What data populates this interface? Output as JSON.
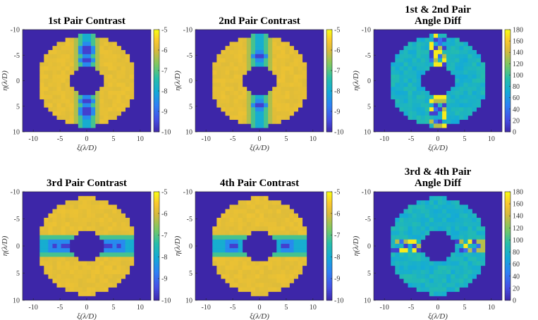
{
  "chart_data": [
    {
      "type": "heatmap",
      "title_lines": [
        "1st Pair Contrast"
      ],
      "xlabel": "ξ(λ/D)",
      "ylabel": "η(λ/D)",
      "xlim": [
        -12,
        12
      ],
      "ylim": [
        -10,
        10
      ],
      "xticks": [
        "-10",
        "-5",
        "0",
        "5",
        "10"
      ],
      "yticks": [
        "-10",
        "-5",
        "0",
        "5",
        "10"
      ],
      "colorbar": {
        "min": -10,
        "max": -5,
        "ticks": [
          "-5",
          "-6",
          "-7",
          "-8",
          "-9",
          "-10"
        ]
      },
      "field": {
        "kind": "contrast",
        "band_axis": "vertical",
        "dark_spots": [
          [
            0,
            -6
          ],
          [
            0,
            -4
          ],
          [
            0,
            4
          ],
          [
            0,
            6
          ]
        ]
      }
    },
    {
      "type": "heatmap",
      "title_lines": [
        "2nd Pair Contrast"
      ],
      "xlabel": "ξ(λ/D)",
      "ylabel": "η(λ/D)",
      "xlim": [
        -12,
        12
      ],
      "ylim": [
        -10,
        10
      ],
      "xticks": [
        "-10",
        "-5",
        "0",
        "5",
        "10"
      ],
      "yticks": [
        "-10",
        "-5",
        "0",
        "5",
        "10"
      ],
      "colorbar": {
        "min": -10,
        "max": -5,
        "ticks": [
          "-5",
          "-6",
          "-7",
          "-8",
          "-9",
          "-10"
        ]
      },
      "field": {
        "kind": "contrast",
        "band_axis": "vertical",
        "dark_spots": [
          [
            0,
            -5
          ],
          [
            0,
            5
          ]
        ]
      }
    },
    {
      "type": "heatmap",
      "title_lines": [
        "1st & 2nd Pair",
        "Angle Diff"
      ],
      "xlabel": "ξ(λ/D)",
      "ylabel": "η(λ/D)",
      "xlim": [
        -12,
        12
      ],
      "ylim": [
        -10,
        10
      ],
      "xticks": [
        "-10",
        "-5",
        "0",
        "5",
        "10"
      ],
      "yticks": [
        "-10",
        "-5",
        "0",
        "5",
        "10"
      ],
      "colorbar": {
        "min": 0,
        "max": 180,
        "ticks": [
          "180",
          "160",
          "140",
          "120",
          "100",
          "80",
          "60",
          "40",
          "20",
          "0"
        ]
      },
      "field": {
        "kind": "angle",
        "band_axis": "vertical"
      }
    },
    {
      "type": "heatmap",
      "title_lines": [
        "3rd Pair Contrast"
      ],
      "xlabel": "ξ(λ/D)",
      "ylabel": "η(λ/D)",
      "xlim": [
        -12,
        12
      ],
      "ylim": [
        -10,
        10
      ],
      "xticks": [
        "-10",
        "-5",
        "0",
        "5",
        "10"
      ],
      "yticks": [
        "-10",
        "-5",
        "0",
        "5",
        "10"
      ],
      "colorbar": {
        "min": -10,
        "max": -5,
        "ticks": [
          "-5",
          "-6",
          "-7",
          "-8",
          "-9",
          "-10"
        ]
      },
      "field": {
        "kind": "contrast",
        "band_axis": "horizontal",
        "dark_spots": [
          [
            -6,
            0
          ],
          [
            -4,
            0
          ],
          [
            4,
            0
          ],
          [
            6,
            0
          ]
        ]
      }
    },
    {
      "type": "heatmap",
      "title_lines": [
        "4th Pair Contrast"
      ],
      "xlabel": "ξ(λ/D)",
      "ylabel": "η(λ/D)",
      "xlim": [
        -12,
        12
      ],
      "ylim": [
        -10,
        10
      ],
      "xticks": [
        "-10",
        "-5",
        "0",
        "5",
        "10"
      ],
      "yticks": [
        "-10",
        "-5",
        "0",
        "5",
        "10"
      ],
      "colorbar": {
        "min": -10,
        "max": -5,
        "ticks": [
          "-5",
          "-6",
          "-7",
          "-8",
          "-9",
          "-10"
        ]
      },
      "field": {
        "kind": "contrast",
        "band_axis": "horizontal",
        "dark_spots": [
          [
            -5,
            0
          ],
          [
            5,
            0
          ]
        ]
      }
    },
    {
      "type": "heatmap",
      "title_lines": [
        "3rd & 4th Pair",
        "Angle Diff"
      ],
      "xlabel": "ξ(λ/D)",
      "ylabel": "η(λ/D)",
      "xlim": [
        -12,
        12
      ],
      "ylim": [
        -10,
        10
      ],
      "xticks": [
        "-10",
        "-5",
        "0",
        "5",
        "10"
      ],
      "yticks": [
        "-10",
        "-5",
        "0",
        "5",
        "10"
      ],
      "colorbar": {
        "min": 0,
        "max": 180,
        "ticks": [
          "180",
          "160",
          "140",
          "120",
          "100",
          "80",
          "60",
          "40",
          "20",
          "0"
        ]
      },
      "field": {
        "kind": "angle",
        "band_axis": "horizontal"
      }
    }
  ],
  "colors": {
    "background_field": "#3d26a8",
    "annulus_contrast": "#f2b838",
    "annulus_angle": "#27b3b3",
    "colormap": "parula"
  },
  "dark_hole": {
    "inner_radius": 3,
    "outer_radius": 9,
    "grid_step": 0.8
  }
}
